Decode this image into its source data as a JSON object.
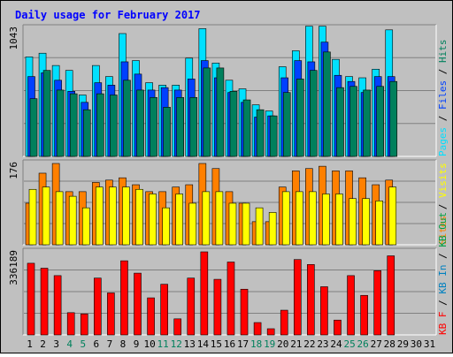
{
  "title": "Daily usage for February 2017",
  "colors": {
    "frame_bg": "#c0c0c0",
    "plot_bg": "#c0c0c0",
    "title": "#0000ff",
    "hits": "#00805c",
    "files": "#0040ff",
    "pages": "#00e0ff",
    "visits": "#ffff00",
    "sites": "#ff8000",
    "kb_in": "#0080c0",
    "kb_out": "#00a040",
    "kb_f": "#ff0000",
    "weekday_label": "#000000",
    "weekend_label": "#00805c"
  },
  "chart_data": [
    {
      "type": "bar",
      "panel": "hits-files-pages",
      "y_max_label": "1043",
      "ylim": [
        0,
        1043
      ],
      "categories": [
        "1",
        "2",
        "3",
        "4",
        "5",
        "6",
        "7",
        "8",
        "9",
        "10",
        "11",
        "12",
        "13",
        "14",
        "15",
        "16",
        "17",
        "18",
        "19",
        "20",
        "21",
        "22",
        "23",
        "24",
        "25",
        "26",
        "27",
        "28",
        "29",
        "30",
        "31"
      ],
      "weekend_days": [
        "4",
        "5",
        "11",
        "12",
        "18",
        "19",
        "25",
        "26"
      ],
      "legend": [
        {
          "label": "Hits",
          "color_key": "hits"
        },
        {
          "label": "Files",
          "color_key": "files"
        },
        {
          "label": "Pages",
          "color_key": "pages"
        }
      ],
      "series": [
        {
          "name": "Hits",
          "values": [
            810,
            840,
            740,
            700,
            500,
            740,
            650,
            1000,
            780,
            600,
            580,
            580,
            800,
            1040,
            760,
            620,
            550,
            420,
            370,
            730,
            860,
            1060,
            1060,
            790,
            650,
            640,
            710,
            1030,
            null,
            null,
            null
          ]
        },
        {
          "name": "Files",
          "values": [
            650,
            680,
            620,
            530,
            440,
            600,
            580,
            770,
            670,
            540,
            560,
            540,
            630,
            780,
            640,
            520,
            440,
            320,
            330,
            640,
            780,
            770,
            930,
            660,
            610,
            520,
            650,
            650,
            null,
            null,
            null
          ]
        },
        {
          "name": "Pages",
          "values": [
            470,
            700,
            540,
            510,
            380,
            510,
            500,
            620,
            540,
            480,
            400,
            480,
            480,
            720,
            720,
            530,
            460,
            380,
            330,
            520,
            630,
            700,
            850,
            560,
            570,
            540,
            570,
            610,
            null,
            null,
            null
          ]
        }
      ]
    },
    {
      "type": "bar",
      "panel": "visits-sites",
      "y_max_label": "176",
      "ylim": [
        0,
        176
      ],
      "categories": [
        "1",
        "2",
        "3",
        "4",
        "5",
        "6",
        "7",
        "8",
        "9",
        "10",
        "11",
        "12",
        "13",
        "14",
        "15",
        "16",
        "17",
        "18",
        "19",
        "20",
        "21",
        "22",
        "23",
        "24",
        "25",
        "26",
        "27",
        "28",
        "29",
        "30",
        "31"
      ],
      "legend": [
        {
          "label": "Visits",
          "color_key": "visits"
        },
        {
          "label": "Sites",
          "color_key": "sites"
        }
      ],
      "series": [
        {
          "name": "Visits",
          "values": [
            90,
            155,
            176,
            115,
            115,
            135,
            140,
            145,
            130,
            115,
            115,
            125,
            130,
            176,
            165,
            115,
            90,
            50,
            50,
            125,
            160,
            165,
            170,
            160,
            160,
            145,
            130,
            140,
            null,
            null,
            null
          ]
        },
        {
          "name": "Sites",
          "values": [
            120,
            125,
            115,
            105,
            80,
            125,
            125,
            125,
            120,
            110,
            80,
            110,
            90,
            115,
            115,
            90,
            90,
            80,
            70,
            115,
            115,
            115,
            110,
            110,
            100,
            100,
            95,
            125,
            null,
            null,
            null
          ]
        }
      ]
    },
    {
      "type": "bar",
      "panel": "kb",
      "y_max_label": "336189",
      "ylim": [
        0,
        336189
      ],
      "categories": [
        "1",
        "2",
        "3",
        "4",
        "5",
        "6",
        "7",
        "8",
        "9",
        "10",
        "11",
        "12",
        "13",
        "14",
        "15",
        "16",
        "17",
        "18",
        "19",
        "20",
        "21",
        "22",
        "23",
        "24",
        "25",
        "26",
        "27",
        "28",
        "29",
        "30",
        "31"
      ],
      "legend": [
        {
          "label": "KB F",
          "color_key": "kb_f"
        },
        {
          "label": "KB In",
          "color_key": "kb_in"
        },
        {
          "label": "KB Out",
          "color_key": "kb_out"
        }
      ],
      "series": [
        {
          "name": "KB F",
          "values": [
            290000,
            270000,
            240000,
            90000,
            85000,
            230000,
            170000,
            300000,
            250000,
            150000,
            205000,
            65000,
            230000,
            336189,
            225000,
            295000,
            185000,
            50000,
            25000,
            100000,
            305000,
            285000,
            195000,
            60000,
            240000,
            160000,
            260000,
            320000,
            null,
            null,
            null
          ]
        }
      ]
    }
  ]
}
